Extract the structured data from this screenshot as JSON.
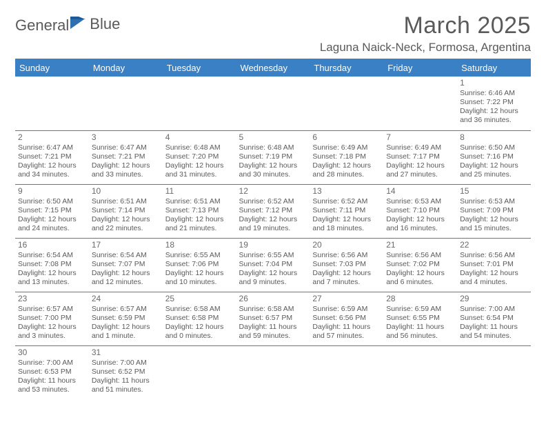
{
  "logo": {
    "text1": "General",
    "text2": "Blue"
  },
  "title": "March 2025",
  "location": "Laguna Naick-Neck, Formosa, Argentina",
  "colors": {
    "header_bg": "#3a80c4",
    "header_text": "#ffffff",
    "body_text": "#5a5a5a",
    "border": "#3a80c4",
    "page_bg": "#ffffff"
  },
  "day_headers": [
    "Sunday",
    "Monday",
    "Tuesday",
    "Wednesday",
    "Thursday",
    "Friday",
    "Saturday"
  ],
  "weeks": [
    [
      null,
      null,
      null,
      null,
      null,
      null,
      {
        "n": "1",
        "sr": "Sunrise: 6:46 AM",
        "ss": "Sunset: 7:22 PM",
        "dl": "Daylight: 12 hours and 36 minutes."
      }
    ],
    [
      {
        "n": "2",
        "sr": "Sunrise: 6:47 AM",
        "ss": "Sunset: 7:21 PM",
        "dl": "Daylight: 12 hours and 34 minutes."
      },
      {
        "n": "3",
        "sr": "Sunrise: 6:47 AM",
        "ss": "Sunset: 7:21 PM",
        "dl": "Daylight: 12 hours and 33 minutes."
      },
      {
        "n": "4",
        "sr": "Sunrise: 6:48 AM",
        "ss": "Sunset: 7:20 PM",
        "dl": "Daylight: 12 hours and 31 minutes."
      },
      {
        "n": "5",
        "sr": "Sunrise: 6:48 AM",
        "ss": "Sunset: 7:19 PM",
        "dl": "Daylight: 12 hours and 30 minutes."
      },
      {
        "n": "6",
        "sr": "Sunrise: 6:49 AM",
        "ss": "Sunset: 7:18 PM",
        "dl": "Daylight: 12 hours and 28 minutes."
      },
      {
        "n": "7",
        "sr": "Sunrise: 6:49 AM",
        "ss": "Sunset: 7:17 PM",
        "dl": "Daylight: 12 hours and 27 minutes."
      },
      {
        "n": "8",
        "sr": "Sunrise: 6:50 AM",
        "ss": "Sunset: 7:16 PM",
        "dl": "Daylight: 12 hours and 25 minutes."
      }
    ],
    [
      {
        "n": "9",
        "sr": "Sunrise: 6:50 AM",
        "ss": "Sunset: 7:15 PM",
        "dl": "Daylight: 12 hours and 24 minutes."
      },
      {
        "n": "10",
        "sr": "Sunrise: 6:51 AM",
        "ss": "Sunset: 7:14 PM",
        "dl": "Daylight: 12 hours and 22 minutes."
      },
      {
        "n": "11",
        "sr": "Sunrise: 6:51 AM",
        "ss": "Sunset: 7:13 PM",
        "dl": "Daylight: 12 hours and 21 minutes."
      },
      {
        "n": "12",
        "sr": "Sunrise: 6:52 AM",
        "ss": "Sunset: 7:12 PM",
        "dl": "Daylight: 12 hours and 19 minutes."
      },
      {
        "n": "13",
        "sr": "Sunrise: 6:52 AM",
        "ss": "Sunset: 7:11 PM",
        "dl": "Daylight: 12 hours and 18 minutes."
      },
      {
        "n": "14",
        "sr": "Sunrise: 6:53 AM",
        "ss": "Sunset: 7:10 PM",
        "dl": "Daylight: 12 hours and 16 minutes."
      },
      {
        "n": "15",
        "sr": "Sunrise: 6:53 AM",
        "ss": "Sunset: 7:09 PM",
        "dl": "Daylight: 12 hours and 15 minutes."
      }
    ],
    [
      {
        "n": "16",
        "sr": "Sunrise: 6:54 AM",
        "ss": "Sunset: 7:08 PM",
        "dl": "Daylight: 12 hours and 13 minutes."
      },
      {
        "n": "17",
        "sr": "Sunrise: 6:54 AM",
        "ss": "Sunset: 7:07 PM",
        "dl": "Daylight: 12 hours and 12 minutes."
      },
      {
        "n": "18",
        "sr": "Sunrise: 6:55 AM",
        "ss": "Sunset: 7:06 PM",
        "dl": "Daylight: 12 hours and 10 minutes."
      },
      {
        "n": "19",
        "sr": "Sunrise: 6:55 AM",
        "ss": "Sunset: 7:04 PM",
        "dl": "Daylight: 12 hours and 9 minutes."
      },
      {
        "n": "20",
        "sr": "Sunrise: 6:56 AM",
        "ss": "Sunset: 7:03 PM",
        "dl": "Daylight: 12 hours and 7 minutes."
      },
      {
        "n": "21",
        "sr": "Sunrise: 6:56 AM",
        "ss": "Sunset: 7:02 PM",
        "dl": "Daylight: 12 hours and 6 minutes."
      },
      {
        "n": "22",
        "sr": "Sunrise: 6:56 AM",
        "ss": "Sunset: 7:01 PM",
        "dl": "Daylight: 12 hours and 4 minutes."
      }
    ],
    [
      {
        "n": "23",
        "sr": "Sunrise: 6:57 AM",
        "ss": "Sunset: 7:00 PM",
        "dl": "Daylight: 12 hours and 3 minutes."
      },
      {
        "n": "24",
        "sr": "Sunrise: 6:57 AM",
        "ss": "Sunset: 6:59 PM",
        "dl": "Daylight: 12 hours and 1 minute."
      },
      {
        "n": "25",
        "sr": "Sunrise: 6:58 AM",
        "ss": "Sunset: 6:58 PM",
        "dl": "Daylight: 12 hours and 0 minutes."
      },
      {
        "n": "26",
        "sr": "Sunrise: 6:58 AM",
        "ss": "Sunset: 6:57 PM",
        "dl": "Daylight: 11 hours and 59 minutes."
      },
      {
        "n": "27",
        "sr": "Sunrise: 6:59 AM",
        "ss": "Sunset: 6:56 PM",
        "dl": "Daylight: 11 hours and 57 minutes."
      },
      {
        "n": "28",
        "sr": "Sunrise: 6:59 AM",
        "ss": "Sunset: 6:55 PM",
        "dl": "Daylight: 11 hours and 56 minutes."
      },
      {
        "n": "29",
        "sr": "Sunrise: 7:00 AM",
        "ss": "Sunset: 6:54 PM",
        "dl": "Daylight: 11 hours and 54 minutes."
      }
    ],
    [
      {
        "n": "30",
        "sr": "Sunrise: 7:00 AM",
        "ss": "Sunset: 6:53 PM",
        "dl": "Daylight: 11 hours and 53 minutes."
      },
      {
        "n": "31",
        "sr": "Sunrise: 7:00 AM",
        "ss": "Sunset: 6:52 PM",
        "dl": "Daylight: 11 hours and 51 minutes."
      },
      null,
      null,
      null,
      null,
      null
    ]
  ]
}
